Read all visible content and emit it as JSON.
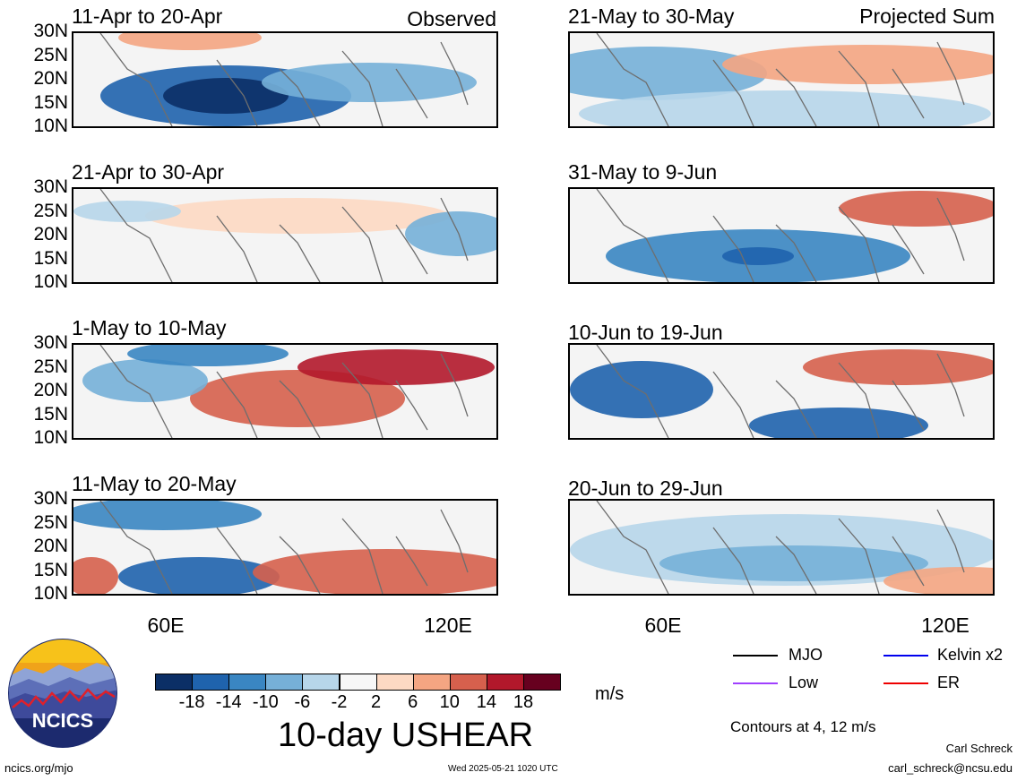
{
  "panels": [
    {
      "id": "p1",
      "title": "11-Apr to 20-Apr",
      "tag": "Observed"
    },
    {
      "id": "p2",
      "title": "21-May to 30-May",
      "tag": "Projected Sum"
    },
    {
      "id": "p3",
      "title": "21-Apr to 30-Apr",
      "tag": ""
    },
    {
      "id": "p4",
      "title": "31-May to 9-Jun",
      "tag": ""
    },
    {
      "id": "p5",
      "title": "1-May to 10-May",
      "tag": ""
    },
    {
      "id": "p6",
      "title": "10-Jun to 19-Jun",
      "tag": ""
    },
    {
      "id": "p7",
      "title": "11-May to 20-May",
      "tag": ""
    },
    {
      "id": "p8",
      "title": "20-Jun to 29-Jun",
      "tag": ""
    }
  ],
  "axes": {
    "lat_labels": [
      "30N",
      "25N",
      "20N",
      "15N",
      "10N"
    ],
    "lon_labels": [
      "60E",
      "120E"
    ]
  },
  "colorbar": {
    "labels": [
      "-18",
      "-14",
      "-10",
      "-6",
      "-2",
      "2",
      "6",
      "10",
      "14",
      "18"
    ],
    "colors": [
      "#0b2f66",
      "#1f63ad",
      "#3a86c2",
      "#76b0d8",
      "#b7d6ea",
      "#f7f7f7",
      "#fdd9c3",
      "#f4a582",
      "#d6604d",
      "#b2182b",
      "#67001f"
    ],
    "units": "m/s",
    "title": "10-day USHEAR"
  },
  "legend": {
    "items": [
      {
        "label": "MJO",
        "color": "#000000"
      },
      {
        "label": "Kelvin x2",
        "color": "#0000ee"
      },
      {
        "label": "Low",
        "color": "#a040ff"
      },
      {
        "label": "ER",
        "color": "#ee0000"
      }
    ],
    "contours_note": "Contours at 4, 12 m/s"
  },
  "footer": {
    "site": "ncics.org/mjo",
    "timestamp": "Wed 2025-05-21 1020 UTC",
    "author": "Carl Schreck",
    "email": "carl_schreck@ncsu.edu"
  },
  "logo": {
    "text": "NCICS"
  }
}
